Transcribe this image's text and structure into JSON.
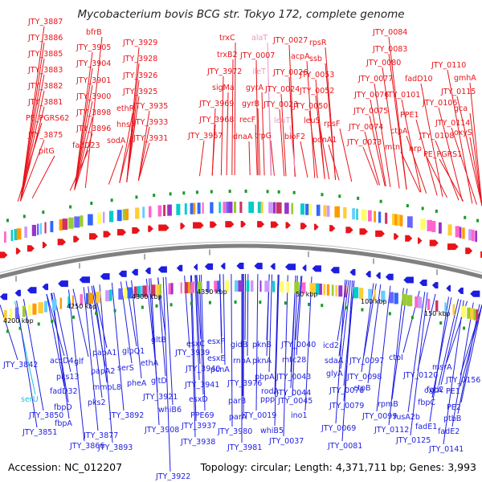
{
  "title": "Mycobacterium bovis BCG str. Tokyo 172, complete genome",
  "footer": {
    "accession": "Accession: NC_012207",
    "summary": "Topology: circular; Length: 4,371,711 bp; Genes: 3,993"
  },
  "colors": {
    "forward": "#e8141a",
    "reverse": "#1e1ee0",
    "rna": "#e899c8",
    "trna_rev": "#19c3dd",
    "backbone": "#808080",
    "ticks": "#1a9a2a"
  },
  "ticks": [
    {
      "text": "4200 kbp"
    },
    {
      "text": "4250 kbp"
    },
    {
      "text": "4300 kbp"
    },
    {
      "text": "4350 kbp"
    },
    {
      "text": "50 kbp"
    },
    {
      "text": "100 kbp"
    },
    {
      "text": "150 kbp"
    }
  ],
  "top_labels": [
    {
      "text": "JTY_3887",
      "kind": "forward"
    },
    {
      "text": "JTY_3886",
      "kind": "forward"
    },
    {
      "text": "JTY_3885",
      "kind": "forward"
    },
    {
      "text": "JTY_3883",
      "kind": "forward"
    },
    {
      "text": "JTY_3882",
      "kind": "forward"
    },
    {
      "text": "JTY_3881",
      "kind": "forward"
    },
    {
      "text": "PE_PGRS62",
      "kind": "forward"
    },
    {
      "text": "JTY_3875",
      "kind": "forward"
    },
    {
      "text": "pitG",
      "kind": "forward"
    },
    {
      "text": "bfrB",
      "kind": "forward"
    },
    {
      "text": "JTY_3905",
      "kind": "forward"
    },
    {
      "text": "JTY_3904",
      "kind": "forward"
    },
    {
      "text": "JTY_3901",
      "kind": "forward"
    },
    {
      "text": "JTY_3900",
      "kind": "forward"
    },
    {
      "text": "JTY_3898",
      "kind": "forward"
    },
    {
      "text": "JTY_3896",
      "kind": "forward"
    },
    {
      "text": "fadD23",
      "kind": "forward"
    },
    {
      "text": "JTY_3929",
      "kind": "forward"
    },
    {
      "text": "JTY_3928",
      "kind": "forward"
    },
    {
      "text": "JTY_3926",
      "kind": "forward"
    },
    {
      "text": "JTY_3925",
      "kind": "forward"
    },
    {
      "text": "ethR",
      "kind": "forward"
    },
    {
      "text": "hns",
      "kind": "forward"
    },
    {
      "text": "sodA",
      "kind": "forward"
    },
    {
      "text": "JTY_3935",
      "kind": "forward"
    },
    {
      "text": "JTY_3933",
      "kind": "forward"
    },
    {
      "text": "JTY_3931",
      "kind": "forward"
    },
    {
      "text": "trxC",
      "kind": "forward"
    },
    {
      "text": "trxB2",
      "kind": "forward"
    },
    {
      "text": "JTY_3972",
      "kind": "forward"
    },
    {
      "text": "sigMa",
      "kind": "forward"
    },
    {
      "text": "JTY_3969",
      "kind": "forward"
    },
    {
      "text": "JTY_3968",
      "kind": "forward"
    },
    {
      "text": "JTY_3967",
      "kind": "forward"
    },
    {
      "text": "alaT",
      "kind": "rna"
    },
    {
      "text": "JTY_0007",
      "kind": "forward"
    },
    {
      "text": "ileT",
      "kind": "rna"
    },
    {
      "text": "gyrA",
      "kind": "forward"
    },
    {
      "text": "gyrB",
      "kind": "forward"
    },
    {
      "text": "recF",
      "kind": "forward"
    },
    {
      "text": "dnaA",
      "kind": "forward"
    },
    {
      "text": "trpG",
      "kind": "forward"
    },
    {
      "text": "JTY_0027",
      "kind": "forward"
    },
    {
      "text": "acpA",
      "kind": "forward"
    },
    {
      "text": "JTY_0026",
      "kind": "forward"
    },
    {
      "text": "JTY_0024",
      "kind": "forward"
    },
    {
      "text": "JTY_0023",
      "kind": "forward"
    },
    {
      "text": "leuT",
      "kind": "rna"
    },
    {
      "text": "bioF2",
      "kind": "forward"
    },
    {
      "text": "rpsR",
      "kind": "forward"
    },
    {
      "text": "ssb",
      "kind": "forward"
    },
    {
      "text": "JTY_0053",
      "kind": "forward"
    },
    {
      "text": "JTY_0052",
      "kind": "forward"
    },
    {
      "text": "JTY_0050",
      "kind": "forward"
    },
    {
      "text": "leuS",
      "kind": "forward"
    },
    {
      "text": "rpsF",
      "kind": "forward"
    },
    {
      "text": "ponA1",
      "kind": "forward"
    },
    {
      "text": "JTY_0084",
      "kind": "forward"
    },
    {
      "text": "JTY_0083",
      "kind": "forward"
    },
    {
      "text": "JTY_0080",
      "kind": "forward"
    },
    {
      "text": "JTY_0077",
      "kind": "forward"
    },
    {
      "text": "JTY_0076",
      "kind": "forward"
    },
    {
      "text": "JTY_0075",
      "kind": "forward"
    },
    {
      "text": "JTY_0074",
      "kind": "forward"
    },
    {
      "text": "JTY_0073",
      "kind": "forward"
    },
    {
      "text": "fadD10",
      "kind": "forward"
    },
    {
      "text": "JTY_0101",
      "kind": "forward"
    },
    {
      "text": "PPE1",
      "kind": "forward"
    },
    {
      "text": "ctpA",
      "kind": "forward"
    },
    {
      "text": "mtn",
      "kind": "forward"
    },
    {
      "text": "nrp",
      "kind": "forward"
    },
    {
      "text": "JTY_0110",
      "kind": "forward"
    },
    {
      "text": "gmhA",
      "kind": "forward"
    },
    {
      "text": "JTY_0115",
      "kind": "forward"
    },
    {
      "text": "JTY_0106",
      "kind": "forward"
    },
    {
      "text": "gca",
      "kind": "forward"
    },
    {
      "text": "oxyS",
      "kind": "forward"
    },
    {
      "text": "JTY_0114",
      "kind": "forward"
    },
    {
      "text": "JTY_0108",
      "kind": "forward"
    },
    {
      "text": "PE_PGRS1",
      "kind": "forward"
    }
  ],
  "bottom_labels": [
    {
      "text": "JTY_3842",
      "kind": "reverse"
    },
    {
      "text": "serU",
      "kind": "trna_rev"
    },
    {
      "text": "JTY_3850",
      "kind": "reverse"
    },
    {
      "text": "JTY_3851",
      "kind": "reverse"
    },
    {
      "text": "accD4",
      "kind": "reverse"
    },
    {
      "text": "glf",
      "kind": "reverse"
    },
    {
      "text": "pks13",
      "kind": "reverse"
    },
    {
      "text": "fadD32",
      "kind": "reverse"
    },
    {
      "text": "fbpD",
      "kind": "reverse"
    },
    {
      "text": "fbpA",
      "kind": "reverse"
    },
    {
      "text": "JTY_3866",
      "kind": "reverse"
    },
    {
      "text": "JTY_3877",
      "kind": "reverse"
    },
    {
      "text": "papA1",
      "kind": "reverse"
    },
    {
      "text": "papA2",
      "kind": "reverse"
    },
    {
      "text": "mmpL8",
      "kind": "reverse"
    },
    {
      "text": "pks2",
      "kind": "reverse"
    },
    {
      "text": "JTY_3893",
      "kind": "reverse"
    },
    {
      "text": "JTY_3892",
      "kind": "reverse"
    },
    {
      "text": "glpQ1",
      "kind": "reverse"
    },
    {
      "text": "serS",
      "kind": "reverse"
    },
    {
      "text": "pheA",
      "kind": "reverse"
    },
    {
      "text": "JTY_3908",
      "kind": "reverse"
    },
    {
      "text": "JTY_3921",
      "kind": "reverse"
    },
    {
      "text": "JTY_3922",
      "kind": "reverse"
    },
    {
      "text": "gltB",
      "kind": "reverse"
    },
    {
      "text": "ethA",
      "kind": "reverse"
    },
    {
      "text": "gltD",
      "kind": "reverse"
    },
    {
      "text": "whiB6",
      "kind": "reverse"
    },
    {
      "text": "JTY_3937",
      "kind": "reverse"
    },
    {
      "text": "JTY_3938",
      "kind": "reverse"
    },
    {
      "text": "JTY_3939",
      "kind": "reverse"
    },
    {
      "text": "JTY_3940",
      "kind": "reverse"
    },
    {
      "text": "JTY_3941",
      "kind": "reverse"
    },
    {
      "text": "esxC",
      "kind": "reverse"
    },
    {
      "text": "esxD",
      "kind": "reverse"
    },
    {
      "text": "PPE69",
      "kind": "reverse"
    },
    {
      "text": "esxF",
      "kind": "reverse"
    },
    {
      "text": "esxE",
      "kind": "reverse"
    },
    {
      "text": "pcnA",
      "kind": "reverse"
    },
    {
      "text": "JTY_3976",
      "kind": "reverse"
    },
    {
      "text": "gidB",
      "kind": "reverse"
    },
    {
      "text": "rnpA",
      "kind": "reverse"
    },
    {
      "text": "parB",
      "kind": "reverse"
    },
    {
      "text": "parA",
      "kind": "reverse"
    },
    {
      "text": "JTY_3980",
      "kind": "reverse"
    },
    {
      "text": "JTY_3981",
      "kind": "reverse"
    },
    {
      "text": "pknB",
      "kind": "reverse"
    },
    {
      "text": "pknA",
      "kind": "reverse"
    },
    {
      "text": "pbpA",
      "kind": "reverse"
    },
    {
      "text": "rodA",
      "kind": "reverse"
    },
    {
      "text": "ppp",
      "kind": "reverse"
    },
    {
      "text": "JTY_0019",
      "kind": "reverse"
    },
    {
      "text": "whiB5",
      "kind": "reverse"
    },
    {
      "text": "JTY_0037",
      "kind": "reverse"
    },
    {
      "text": "JTY_0040",
      "kind": "reverse"
    },
    {
      "text": "mtc28",
      "kind": "reverse"
    },
    {
      "text": "JTY_0043",
      "kind": "reverse"
    },
    {
      "text": "JTY_0044",
      "kind": "reverse"
    },
    {
      "text": "JTY_0045",
      "kind": "reverse"
    },
    {
      "text": "ino1",
      "kind": "reverse"
    },
    {
      "text": "icd2",
      "kind": "reverse"
    },
    {
      "text": "sdaA",
      "kind": "reverse"
    },
    {
      "text": "glyA",
      "kind": "reverse"
    },
    {
      "text": "JTY_0078",
      "kind": "reverse"
    },
    {
      "text": "JTY_0079",
      "kind": "reverse"
    },
    {
      "text": "JTY_0069",
      "kind": "reverse"
    },
    {
      "text": "JTY_0081",
      "kind": "reverse"
    },
    {
      "text": "JTY_0097",
      "kind": "reverse"
    },
    {
      "text": "JTY_0098",
      "kind": "reverse"
    },
    {
      "text": "ctpB",
      "kind": "reverse"
    },
    {
      "text": "JTY_0099",
      "kind": "reverse"
    },
    {
      "text": "ctpI",
      "kind": "reverse"
    },
    {
      "text": "rpmB",
      "kind": "reverse"
    },
    {
      "text": "JTY_0120",
      "kind": "reverse"
    },
    {
      "text": "JTY_0112",
      "kind": "reverse"
    },
    {
      "text": "fusA2b",
      "kind": "reverse"
    },
    {
      "text": "JTY_0125",
      "kind": "reverse"
    },
    {
      "text": "oxcA",
      "kind": "reverse"
    },
    {
      "text": "fbpC",
      "kind": "reverse"
    },
    {
      "text": "fadE1",
      "kind": "reverse"
    },
    {
      "text": "fgd2",
      "kind": "reverse"
    },
    {
      "text": "msrA",
      "kind": "reverse"
    },
    {
      "text": "JTY_0156",
      "kind": "reverse"
    },
    {
      "text": "PE1",
      "kind": "reverse"
    },
    {
      "text": "PE2",
      "kind": "reverse"
    },
    {
      "text": "ptbB",
      "kind": "reverse"
    },
    {
      "text": "fadE2",
      "kind": "reverse"
    },
    {
      "text": "JTY_0141",
      "kind": "reverse"
    }
  ]
}
